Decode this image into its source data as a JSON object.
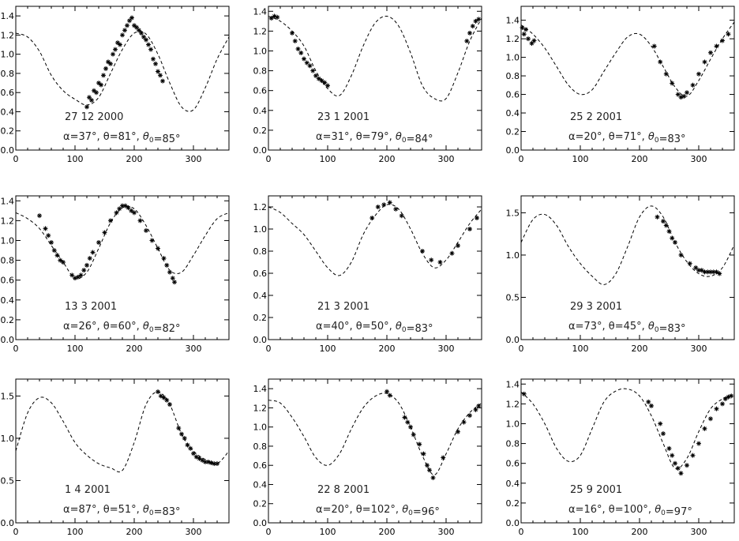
{
  "chart_data": [
    {
      "type": "scatter",
      "date": "27 12 2000",
      "params": "α=37°, θ=81°, θ0=85°",
      "xlim": [
        0,
        360
      ],
      "ylim": [
        0,
        1.5
      ],
      "xticks": [
        0,
        100,
        200,
        300
      ],
      "yticks": [
        0.0,
        0.2,
        0.4,
        0.6,
        0.8,
        1.0,
        1.2,
        1.4
      ],
      "yticklabels": [
        "0.0",
        "0.2",
        "0.4",
        "0.6",
        "0.8",
        "1.0",
        "1.2",
        "1.4"
      ],
      "model_curve": {
        "x": [
          0,
          20,
          40,
          60,
          80,
          100,
          120,
          140,
          160,
          180,
          200,
          220,
          240,
          260,
          280,
          300,
          320,
          340,
          360
        ],
        "y": [
          1.22,
          1.18,
          1.03,
          0.78,
          0.62,
          0.53,
          0.47,
          0.55,
          0.8,
          1.05,
          1.22,
          1.21,
          1.0,
          0.7,
          0.45,
          0.42,
          0.65,
          0.95,
          1.18
        ]
      },
      "observations": {
        "x": [
          120,
          124,
          128,
          132,
          136,
          140,
          144,
          148,
          152,
          156,
          160,
          164,
          168,
          172,
          176,
          180,
          184,
          188,
          192,
          196,
          200,
          204,
          208,
          212,
          216,
          220,
          224,
          228,
          232,
          236,
          240,
          244,
          248
        ],
        "y": [
          0.45,
          0.55,
          0.52,
          0.62,
          0.6,
          0.7,
          0.68,
          0.78,
          0.85,
          0.92,
          0.9,
          1.0,
          1.05,
          1.12,
          1.1,
          1.2,
          1.25,
          1.3,
          1.35,
          1.38,
          1.3,
          1.28,
          1.25,
          1.22,
          1.18,
          1.15,
          1.1,
          1.05,
          0.95,
          0.9,
          0.82,
          0.78,
          0.72
        ]
      }
    },
    {
      "type": "scatter",
      "date": "23 1 2001",
      "params": "α=31°, θ=79°, θ0=84°",
      "xlim": [
        0,
        360
      ],
      "ylim": [
        0,
        1.45
      ],
      "xticks": [
        0,
        100,
        200,
        300
      ],
      "yticks": [
        0.0,
        0.2,
        0.4,
        0.6,
        0.8,
        1.0,
        1.2,
        1.4
      ],
      "yticklabels": [
        "0.0",
        "0.2",
        "0.4",
        "0.6",
        "0.8",
        "1.0",
        "1.2",
        "1.4"
      ],
      "model_curve": {
        "x": [
          0,
          20,
          40,
          60,
          80,
          100,
          120,
          140,
          160,
          180,
          200,
          220,
          240,
          260,
          280,
          300,
          320,
          340,
          360
        ],
        "y": [
          1.35,
          1.3,
          1.2,
          1.05,
          0.8,
          0.62,
          0.55,
          0.75,
          1.05,
          1.28,
          1.35,
          1.25,
          0.98,
          0.65,
          0.52,
          0.52,
          0.78,
          1.1,
          1.33
        ]
      },
      "observations": {
        "x": [
          5,
          10,
          15,
          40,
          45,
          50,
          55,
          60,
          65,
          70,
          75,
          80,
          85,
          90,
          95,
          100,
          335,
          340,
          345,
          350,
          355
        ],
        "y": [
          1.33,
          1.35,
          1.34,
          1.18,
          1.1,
          1.02,
          0.98,
          0.92,
          0.88,
          0.85,
          0.8,
          0.75,
          0.72,
          0.7,
          0.68,
          0.65,
          1.1,
          1.18,
          1.25,
          1.3,
          1.32
        ]
      }
    },
    {
      "type": "scatter",
      "date": "25 2 2001",
      "params": "α=20°, θ=71°, θ0=83°",
      "xlim": [
        0,
        360
      ],
      "ylim": [
        0,
        1.55
      ],
      "xticks": [
        0,
        100,
        200,
        300
      ],
      "yticks": [
        0.0,
        0.2,
        0.4,
        0.6,
        0.8,
        1.0,
        1.2,
        1.4
      ],
      "yticklabels": [
        "0.0",
        "0.2",
        "0.4",
        "0.6",
        "0.8",
        "1.0",
        "1.2",
        "1.4"
      ],
      "model_curve": {
        "x": [
          0,
          20,
          40,
          60,
          80,
          100,
          120,
          140,
          160,
          180,
          200,
          220,
          240,
          260,
          280,
          300,
          320,
          340,
          360
        ],
        "y": [
          1.35,
          1.25,
          1.1,
          0.9,
          0.7,
          0.6,
          0.65,
          0.85,
          1.05,
          1.22,
          1.25,
          1.12,
          0.9,
          0.68,
          0.58,
          0.75,
          0.98,
          1.2,
          1.38
        ]
      },
      "observations": {
        "x": [
          2,
          5,
          8,
          12,
          18,
          22,
          225,
          235,
          245,
          255,
          265,
          270,
          275,
          280,
          290,
          300,
          310,
          320,
          330,
          340,
          350
        ],
        "y": [
          1.32,
          1.25,
          1.3,
          1.2,
          1.15,
          1.18,
          1.12,
          0.95,
          0.82,
          0.72,
          0.6,
          0.57,
          0.58,
          0.62,
          0.7,
          0.82,
          0.95,
          1.05,
          1.12,
          1.18,
          1.25
        ]
      }
    },
    {
      "type": "scatter",
      "date": "13 3 2001",
      "params": "α=26°, θ=60°, θ0=82°",
      "xlim": [
        0,
        360
      ],
      "ylim": [
        0,
        1.45
      ],
      "xticks": [
        0,
        100,
        200,
        300
      ],
      "yticks": [
        0.0,
        0.2,
        0.4,
        0.6,
        0.8,
        1.0,
        1.2,
        1.4
      ],
      "yticklabels": [
        "0.0",
        "0.2",
        "0.4",
        "0.6",
        "0.8",
        "1.0",
        "1.2",
        "1.4"
      ],
      "model_curve": {
        "x": [
          0,
          20,
          40,
          60,
          80,
          100,
          120,
          140,
          160,
          180,
          200,
          220,
          240,
          260,
          280,
          300,
          320,
          340,
          360
        ],
        "y": [
          1.28,
          1.22,
          1.12,
          0.95,
          0.78,
          0.62,
          0.68,
          0.92,
          1.18,
          1.33,
          1.32,
          1.15,
          0.92,
          0.7,
          0.68,
          0.85,
          1.05,
          1.22,
          1.28
        ]
      },
      "observations": {
        "x": [
          40,
          50,
          55,
          60,
          65,
          70,
          75,
          80,
          95,
          100,
          105,
          110,
          115,
          120,
          125,
          130,
          140,
          150,
          160,
          170,
          175,
          180,
          185,
          190,
          195,
          200,
          210,
          220,
          230,
          240,
          250,
          255,
          260,
          265,
          268
        ],
        "y": [
          1.25,
          1.12,
          1.05,
          0.98,
          0.9,
          0.85,
          0.8,
          0.78,
          0.65,
          0.62,
          0.63,
          0.65,
          0.7,
          0.75,
          0.82,
          0.88,
          0.98,
          1.08,
          1.2,
          1.28,
          1.32,
          1.35,
          1.35,
          1.33,
          1.3,
          1.28,
          1.2,
          1.1,
          1.0,
          0.92,
          0.82,
          0.75,
          0.68,
          0.62,
          0.58
        ]
      }
    },
    {
      "type": "scatter",
      "date": "21 3 2001",
      "params": "α=40°, θ=50°, θ0=83°",
      "xlim": [
        0,
        360
      ],
      "ylim": [
        0,
        1.3
      ],
      "xticks": [
        0,
        100,
        200,
        300
      ],
      "yticks": [
        0.0,
        0.2,
        0.4,
        0.6,
        0.8,
        1.0,
        1.2
      ],
      "yticklabels": [
        "0.0",
        "0.2",
        "0.4",
        "0.6",
        "0.8",
        "1.0",
        "1.2"
      ],
      "model_curve": {
        "x": [
          0,
          20,
          40,
          60,
          80,
          100,
          120,
          140,
          160,
          180,
          200,
          220,
          240,
          260,
          280,
          300,
          320,
          340,
          360
        ],
        "y": [
          1.2,
          1.15,
          1.05,
          0.95,
          0.8,
          0.65,
          0.58,
          0.7,
          0.95,
          1.12,
          1.22,
          1.18,
          1.0,
          0.78,
          0.65,
          0.72,
          0.88,
          1.05,
          1.18
        ]
      },
      "observations": {
        "x": [
          175,
          185,
          195,
          205,
          215,
          225,
          260,
          275,
          290,
          310,
          320,
          340,
          352
        ],
        "y": [
          1.1,
          1.2,
          1.22,
          1.24,
          1.18,
          1.12,
          0.8,
          0.72,
          0.7,
          0.78,
          0.85,
          1.0,
          1.1
        ]
      }
    },
    {
      "type": "scatter",
      "date": "29 3 2001",
      "params": "α=73°, θ=45°, θ0=83°",
      "xlim": [
        0,
        360
      ],
      "ylim": [
        0,
        1.7
      ],
      "xticks": [
        0,
        100,
        200,
        300
      ],
      "yticks": [
        0.0,
        0.5,
        1.0,
        1.5
      ],
      "yticklabels": [
        "0.0",
        "0.5",
        "1.0",
        "1.5"
      ],
      "model_curve": {
        "x": [
          0,
          20,
          40,
          60,
          80,
          100,
          120,
          140,
          160,
          180,
          200,
          220,
          240,
          260,
          280,
          300,
          320,
          340,
          360
        ],
        "y": [
          1.15,
          1.42,
          1.48,
          1.35,
          1.1,
          0.9,
          0.75,
          0.65,
          0.78,
          1.1,
          1.45,
          1.58,
          1.45,
          1.15,
          0.92,
          0.78,
          0.75,
          0.85,
          1.12
        ]
      },
      "observations": {
        "x": [
          230,
          240,
          245,
          250,
          255,
          260,
          270,
          285,
          295,
          300,
          305,
          310,
          315,
          320,
          325,
          330,
          335
        ],
        "y": [
          1.45,
          1.4,
          1.35,
          1.28,
          1.2,
          1.15,
          1.0,
          0.9,
          0.85,
          0.82,
          0.82,
          0.8,
          0.8,
          0.8,
          0.8,
          0.8,
          0.78
        ]
      }
    },
    {
      "type": "scatter",
      "date": "1 4 2001",
      "params": "α=87°, θ=51°, θ0=83°",
      "xlim": [
        0,
        360
      ],
      "ylim": [
        0,
        1.7
      ],
      "xticks": [
        0,
        100,
        200,
        300
      ],
      "yticks": [
        0.0,
        0.5,
        1.0,
        1.5
      ],
      "yticklabels": [
        "0.0",
        "0.5",
        "1.0",
        "1.5"
      ],
      "model_curve": {
        "x": [
          0,
          20,
          40,
          60,
          80,
          100,
          120,
          140,
          160,
          180,
          200,
          220,
          240,
          260,
          280,
          300,
          320,
          340,
          360
        ],
        "y": [
          0.85,
          1.3,
          1.48,
          1.42,
          1.2,
          0.95,
          0.8,
          0.7,
          0.65,
          0.62,
          0.95,
          1.4,
          1.55,
          1.4,
          1.05,
          0.85,
          0.75,
          0.7,
          0.85
        ]
      },
      "observations": {
        "x": [
          240,
          245,
          250,
          255,
          260,
          275,
          280,
          285,
          290,
          295,
          300,
          305,
          310,
          315,
          320,
          325,
          330,
          335,
          340
        ],
        "y": [
          1.55,
          1.5,
          1.48,
          1.45,
          1.4,
          1.12,
          1.05,
          1.0,
          0.92,
          0.88,
          0.82,
          0.78,
          0.76,
          0.74,
          0.72,
          0.72,
          0.71,
          0.7,
          0.7
        ]
      }
    },
    {
      "type": "scatter",
      "date": "22 8 2001",
      "params": "α=20°, θ=102°, θ0=96°",
      "xlim": [
        0,
        360
      ],
      "ylim": [
        0,
        1.5
      ],
      "xticks": [
        0,
        100,
        200,
        300
      ],
      "yticks": [
        0.0,
        0.2,
        0.4,
        0.6,
        0.8,
        1.0,
        1.2,
        1.4
      ],
      "yticklabels": [
        "0.0",
        "0.2",
        "0.4",
        "0.6",
        "0.8",
        "1.0",
        "1.2",
        "1.4"
      ],
      "model_curve": {
        "x": [
          0,
          20,
          40,
          60,
          80,
          100,
          120,
          140,
          160,
          180,
          200,
          220,
          240,
          260,
          280,
          300,
          320,
          340,
          360
        ],
        "y": [
          1.28,
          1.25,
          1.1,
          0.9,
          0.68,
          0.6,
          0.72,
          0.98,
          1.2,
          1.32,
          1.35,
          1.25,
          1.0,
          0.7,
          0.5,
          0.72,
          0.98,
          1.15,
          1.25
        ]
      },
      "observations": {
        "x": [
          200,
          205,
          230,
          235,
          240,
          245,
          255,
          262,
          268,
          272,
          278,
          295,
          320,
          330,
          340,
          350,
          355
        ],
        "y": [
          1.37,
          1.33,
          1.1,
          1.05,
          1.0,
          0.92,
          0.82,
          0.72,
          0.6,
          0.55,
          0.47,
          0.68,
          0.95,
          1.05,
          1.12,
          1.18,
          1.22
        ]
      }
    },
    {
      "type": "scatter",
      "date": "25 9 2001",
      "params": "α=16°, θ=100°, θ0=97°",
      "xlim": [
        0,
        360
      ],
      "ylim": [
        0,
        1.45
      ],
      "xticks": [
        0,
        100,
        200,
        300
      ],
      "yticks": [
        0.0,
        0.2,
        0.4,
        0.6,
        0.8,
        1.0,
        1.2,
        1.4
      ],
      "yticklabels": [
        "0.0",
        "0.2",
        "0.4",
        "0.6",
        "0.8",
        "1.0",
        "1.2",
        "1.4"
      ],
      "model_curve": {
        "x": [
          0,
          20,
          40,
          60,
          80,
          100,
          120,
          140,
          160,
          180,
          200,
          220,
          240,
          260,
          280,
          300,
          320,
          340,
          360
        ],
        "y": [
          1.32,
          1.2,
          1.0,
          0.75,
          0.62,
          0.68,
          0.95,
          1.22,
          1.33,
          1.35,
          1.28,
          1.08,
          0.8,
          0.55,
          0.65,
          0.92,
          1.15,
          1.25,
          1.3
        ]
      },
      "observations": {
        "x": [
          5,
          215,
          220,
          235,
          240,
          250,
          255,
          260,
          265,
          270,
          280,
          290,
          300,
          310,
          320,
          330,
          340,
          345,
          350,
          355
        ],
        "y": [
          1.3,
          1.22,
          1.18,
          1.0,
          0.9,
          0.75,
          0.68,
          0.6,
          0.55,
          0.5,
          0.58,
          0.68,
          0.8,
          0.95,
          1.05,
          1.15,
          1.2,
          1.25,
          1.27,
          1.28
        ]
      }
    }
  ]
}
